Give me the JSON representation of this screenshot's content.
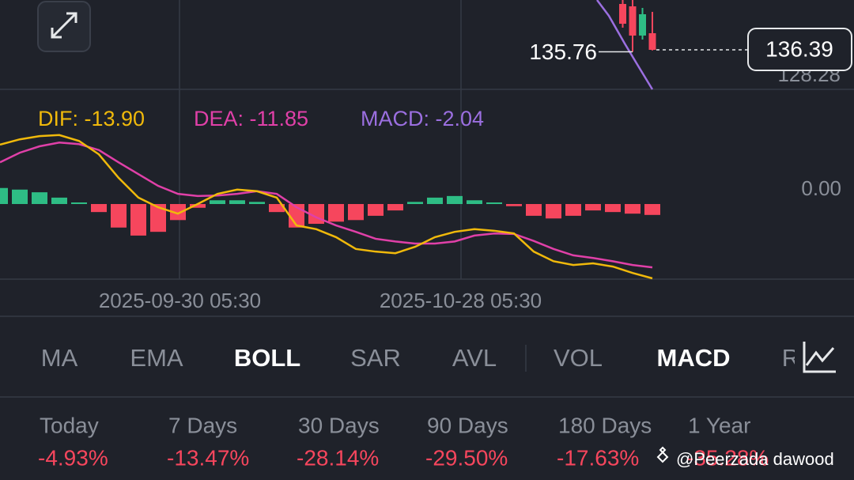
{
  "price_panel": {
    "ylim": [
      123.73,
      152.34
    ],
    "xlim": [
      0,
      86.4
    ],
    "up_color": "#2ebd85",
    "down_color": "#f6465d",
    "candles": [
      {
        "x": 63,
        "open": 151.07,
        "high": 152.34,
        "low": 143.48,
        "close": 144.74
      },
      {
        "x": 64,
        "open": 150.31,
        "high": 152.34,
        "low": 135.76,
        "close": 140.95
      },
      {
        "x": 65,
        "open": 140.95,
        "high": 149.81,
        "low": 139.68,
        "close": 147.78
      },
      {
        "x": 66,
        "open": 141.71,
        "high": 148.54,
        "low": 136.2,
        "close": 136.39
      }
    ],
    "band_line": {
      "color": "#9b6fe0",
      "x": [
        60.4,
        61.6,
        63.2,
        64.4,
        66
      ],
      "values": [
        152.34,
        147.28,
        138.42,
        132.09,
        123.73
      ]
    },
    "low_label": "135.76",
    "last_price_label": "136.39",
    "axis_label": "128.28"
  },
  "macd_panel": {
    "ylim": [
      -14.05,
      21.45
    ],
    "xlim": [
      0,
      86.4
    ],
    "yticks": [
      {
        "value": 0,
        "label": "0.00"
      }
    ],
    "xticks": [
      {
        "value": 18.2,
        "label": "2025-09-30 05:30"
      },
      {
        "value": 46.6,
        "label": "2025-10-28 05:30"
      }
    ],
    "legend": [
      {
        "label": "DIF: -13.90",
        "color": "#f0b90b"
      },
      {
        "label": "DEA: -11.85",
        "color": "#e040a8"
      },
      {
        "label": "MACD: -2.04",
        "color": "#9b6fe0"
      }
    ],
    "x": [
      0,
      2,
      4,
      6,
      8,
      10,
      12,
      14,
      16,
      18,
      20,
      22,
      24,
      26,
      28,
      30,
      32,
      34,
      36,
      38,
      40,
      42,
      44,
      46,
      48,
      50,
      52,
      54,
      56,
      58,
      60,
      62,
      64,
      66
    ],
    "dif": {
      "color": "#f0b90b",
      "values": [
        11.1,
        12.1,
        12.7,
        12.9,
        11.8,
        9.3,
        4.9,
        1.2,
        -0.6,
        -1.8,
        0,
        1.9,
        2.7,
        2.4,
        1.2,
        -4.0,
        -4.7,
        -6.2,
        -8.4,
        -8.9,
        -9.2,
        -8.0,
        -6.2,
        -5.2,
        -4.7,
        -5.0,
        -5.5,
        -8.9,
        -10.7,
        -11.4,
        -11.1,
        -11.7,
        -12.9,
        -13.9
      ]
    },
    "dea": {
      "color": "#e040a8",
      "values": [
        7.8,
        9.6,
        10.8,
        11.5,
        11.2,
        10.1,
        7.8,
        5.6,
        3.4,
        1.9,
        1.5,
        1.6,
        1.9,
        2.4,
        1.9,
        -0.6,
        -2.5,
        -4.0,
        -5.2,
        -6.5,
        -7.0,
        -7.4,
        -7.4,
        -7.0,
        -5.9,
        -5.5,
        -5.6,
        -6.9,
        -8.4,
        -9.6,
        -10.1,
        -10.7,
        -11.4,
        -11.85
      ]
    },
    "histogram": {
      "up_color": "#2ebd85",
      "down_color": "#f6465d",
      "values": [
        3.0,
        2.7,
        2.2,
        1.2,
        0.3,
        -1.5,
        -4.4,
        -5.9,
        -5.2,
        -3.0,
        -0.7,
        0.7,
        0.7,
        0.4,
        -1.5,
        -4.4,
        -3.7,
        -3.3,
        -3.0,
        -2.2,
        -1.2,
        0.4,
        1.2,
        1.5,
        0.7,
        0.3,
        -0.4,
        -2.2,
        -2.7,
        -2.2,
        -1.2,
        -1.5,
        -1.8,
        -2.04
      ]
    }
  },
  "tabs": [
    {
      "label": "MA"
    },
    {
      "label": "EMA"
    },
    {
      "label": "BOLL",
      "active": true
    },
    {
      "label": "SAR"
    },
    {
      "label": "AVL"
    },
    {
      "label": "VOL"
    },
    {
      "label": "MACD",
      "active": true
    },
    {
      "label": "R"
    }
  ],
  "periods": [
    {
      "label": "Today",
      "change": "-4.93%"
    },
    {
      "label": "7 Days",
      "change": "-13.47%"
    },
    {
      "label": "30 Days",
      "change": "-28.14%"
    },
    {
      "label": "90 Days",
      "change": "-29.50%"
    },
    {
      "label": "180 Days",
      "change": "-17.63%"
    },
    {
      "label": "1 Year",
      "change": "-35.28%"
    }
  ],
  "watermark": "@Peerzada dawood"
}
